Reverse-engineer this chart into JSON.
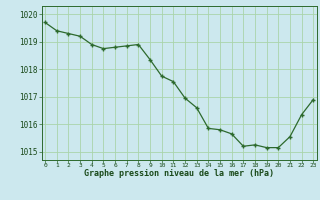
{
  "x": [
    0,
    1,
    2,
    3,
    4,
    5,
    6,
    7,
    8,
    9,
    10,
    11,
    12,
    13,
    14,
    15,
    16,
    17,
    18,
    19,
    20,
    21,
    22,
    23
  ],
  "y": [
    1019.7,
    1019.4,
    1019.3,
    1019.2,
    1018.9,
    1018.75,
    1018.8,
    1018.85,
    1018.9,
    1018.35,
    1017.75,
    1017.55,
    1016.95,
    1016.6,
    1015.85,
    1015.8,
    1015.65,
    1015.2,
    1015.25,
    1015.15,
    1015.15,
    1015.55,
    1016.35,
    1016.9
  ],
  "line_color": "#2d6a2d",
  "marker_color": "#2d6a2d",
  "bg_color": "#cce8ee",
  "grid_color": "#aad4aa",
  "xlabel": "Graphe pression niveau de la mer (hPa)",
  "xlabel_color": "#1a4a1a",
  "tick_color": "#1a4a1a",
  "spine_color": "#2d6a2d",
  "ylim": [
    1014.7,
    1020.3
  ],
  "yticks": [
    1015,
    1016,
    1017,
    1018,
    1019,
    1020
  ],
  "xticks": [
    0,
    1,
    2,
    3,
    4,
    5,
    6,
    7,
    8,
    9,
    10,
    11,
    12,
    13,
    14,
    15,
    16,
    17,
    18,
    19,
    20,
    21,
    22,
    23
  ]
}
